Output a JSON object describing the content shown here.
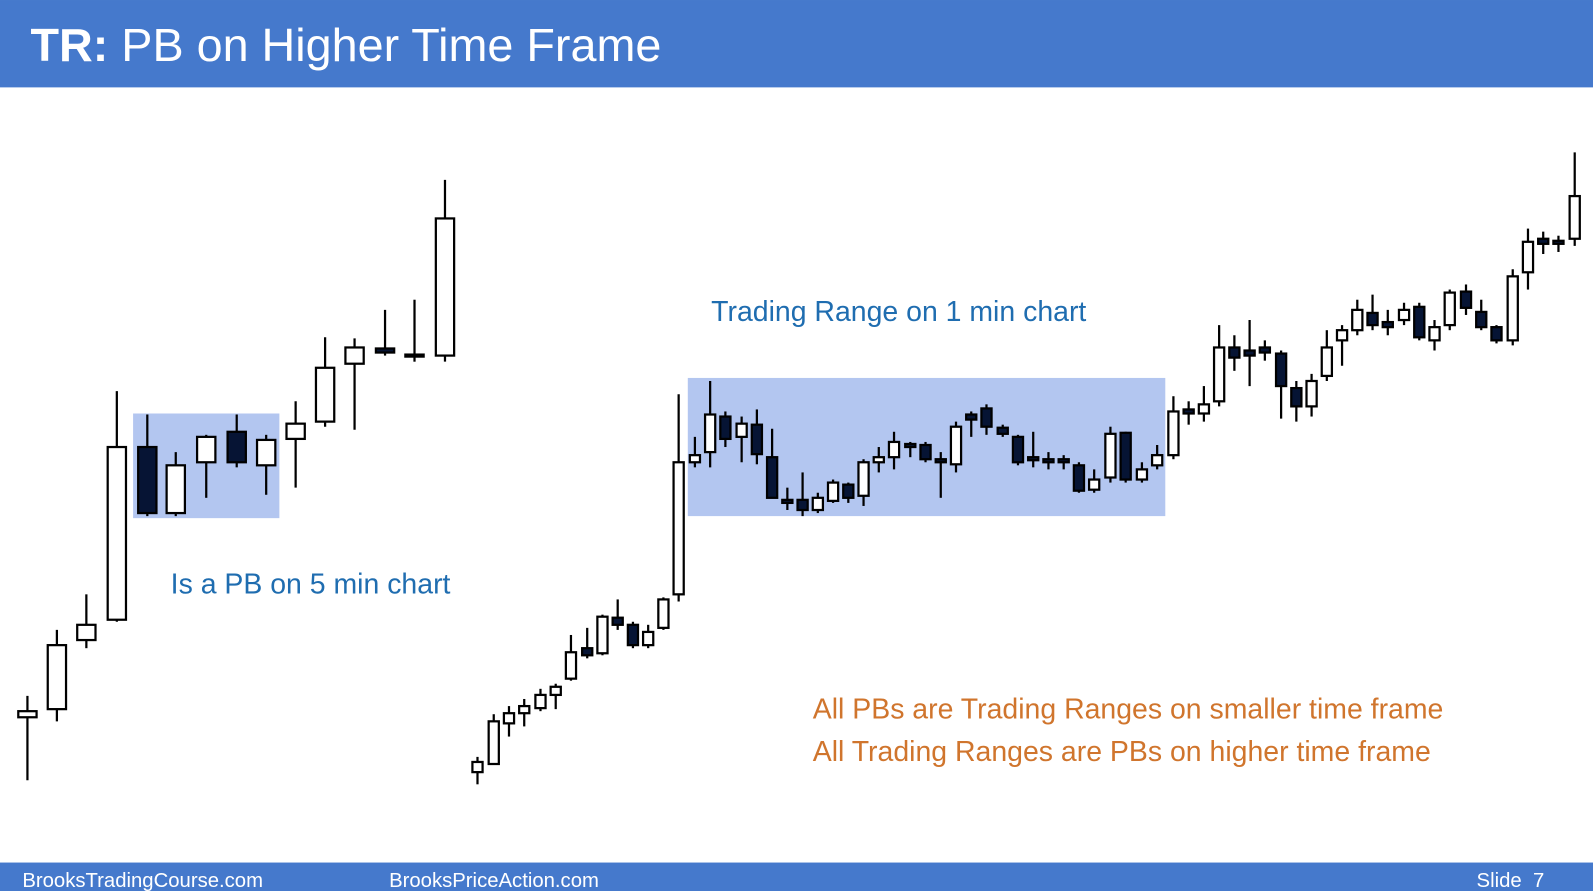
{
  "header": {
    "title_prefix": "TR:",
    "title": "PB on Higher Time Frame"
  },
  "left_chart": {
    "label": "Is a PB on 5 min chart"
  },
  "right_chart": {
    "label": "Trading Range on 1 min chart"
  },
  "notes": [
    "All PBs are Trading Ranges on smaller time frame",
    "All Trading Ranges are PBs on higher time frame"
  ],
  "footer": {
    "site_1": "BrooksTradingCourse.com",
    "site_2": "BrooksPriceAction.com",
    "slide": "Slide  7"
  }
}
